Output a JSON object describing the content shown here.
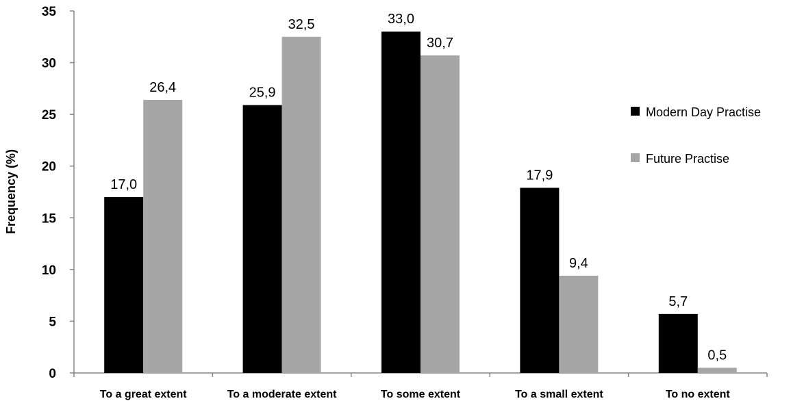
{
  "chart_data": {
    "type": "bar",
    "categories": [
      "To a great extent",
      "To a moderate extent",
      "To some extent",
      "To a small extent",
      "To no extent"
    ],
    "series": [
      {
        "name": "Modern Day Practise",
        "values": [
          17.0,
          25.9,
          33.0,
          17.9,
          5.7
        ],
        "labels": [
          "17,0",
          "25,9",
          "33,0",
          "17,9",
          "5,7"
        ],
        "color": "#000000"
      },
      {
        "name": "Future Practise",
        "values": [
          26.4,
          32.5,
          30.7,
          9.4,
          0.5
        ],
        "labels": [
          "26,4",
          "32,5",
          "30,7",
          "9,4",
          "0,5"
        ],
        "color": "#a6a6a6"
      }
    ],
    "title": "",
    "xlabel": "",
    "ylabel": "Frequency (%)",
    "ylim": [
      0,
      35
    ],
    "yticks": [
      0,
      5,
      10,
      15,
      20,
      25,
      30,
      35
    ],
    "ytick_labels": [
      "0",
      "5",
      "10",
      "15",
      "20",
      "25",
      "30",
      "35"
    ],
    "grid": false,
    "legend_position": "right"
  }
}
